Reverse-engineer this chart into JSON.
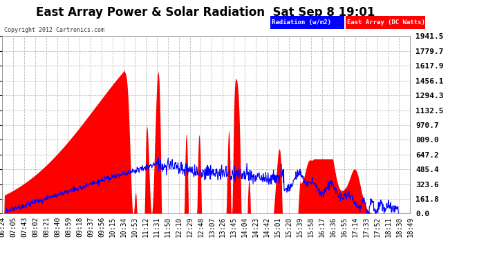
{
  "title": "East Array Power & Solar Radiation  Sat Sep 8 19:01",
  "copyright": "Copyright 2012 Cartronics.com",
  "legend_radiation": "Radiation (w/m2)",
  "legend_east_array": "East Array (DC Watts)",
  "ylabel_values": [
    0.0,
    161.8,
    323.6,
    485.4,
    647.2,
    809.0,
    970.7,
    1132.5,
    1294.3,
    1456.1,
    1617.9,
    1779.7,
    1941.5
  ],
  "ylim": [
    0.0,
    1941.5
  ],
  "background_color": "#ffffff",
  "plot_bg_color": "#ffffff",
  "grid_color": "#bbbbbb",
  "red_color": "#ff0000",
  "blue_color": "#0000ff",
  "title_fontsize": 12,
  "tick_fontsize": 7,
  "x_tick_labels": [
    "06:24",
    "07:05",
    "07:43",
    "08:02",
    "08:21",
    "08:40",
    "08:59",
    "09:18",
    "09:37",
    "09:56",
    "10:15",
    "10:34",
    "10:53",
    "11:12",
    "11:31",
    "11:50",
    "12:10",
    "12:29",
    "12:48",
    "13:07",
    "13:26",
    "13:45",
    "14:04",
    "14:23",
    "14:42",
    "15:01",
    "15:20",
    "15:39",
    "15:58",
    "16:17",
    "16:36",
    "16:55",
    "17:14",
    "17:33",
    "17:52",
    "18:11",
    "18:30",
    "18:49"
  ],
  "n_points": 1000
}
